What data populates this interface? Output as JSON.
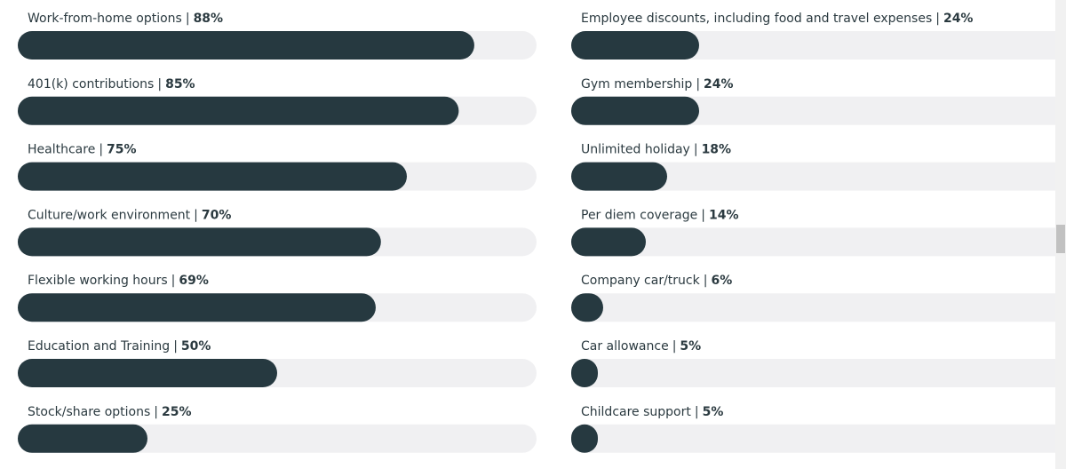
{
  "chart_data": [
    {
      "type": "bar",
      "orientation": "horizontal",
      "separator": "|",
      "categories": [
        "Work-from-home options",
        "401(k) contributions",
        "Healthcare",
        "Culture/work environment",
        "Flexible working hours",
        "Education and Training",
        "Stock/share options"
      ],
      "values": [
        88,
        85,
        75,
        70,
        69,
        50,
        25
      ],
      "value_labels": [
        "88%",
        "85%",
        "75%",
        "70%",
        "69%",
        "50%",
        "25%"
      ],
      "xlim": [
        0,
        100
      ],
      "color": "#263940",
      "track_color": "#f0f0f2"
    },
    {
      "type": "bar",
      "orientation": "horizontal",
      "separator": "|",
      "categories": [
        "Employee discounts, including food and travel expenses",
        "Gym membership",
        "Unlimited holiday",
        "Per diem coverage",
        "Company car/truck",
        "Car allowance",
        "Childcare support"
      ],
      "values": [
        24,
        24,
        18,
        14,
        6,
        5,
        5
      ],
      "value_labels": [
        "24%",
        "24%",
        "18%",
        "14%",
        "6%",
        "5%",
        "5%"
      ],
      "xlim": [
        0,
        100
      ],
      "color": "#263940",
      "track_color": "#f0f0f2"
    }
  ]
}
